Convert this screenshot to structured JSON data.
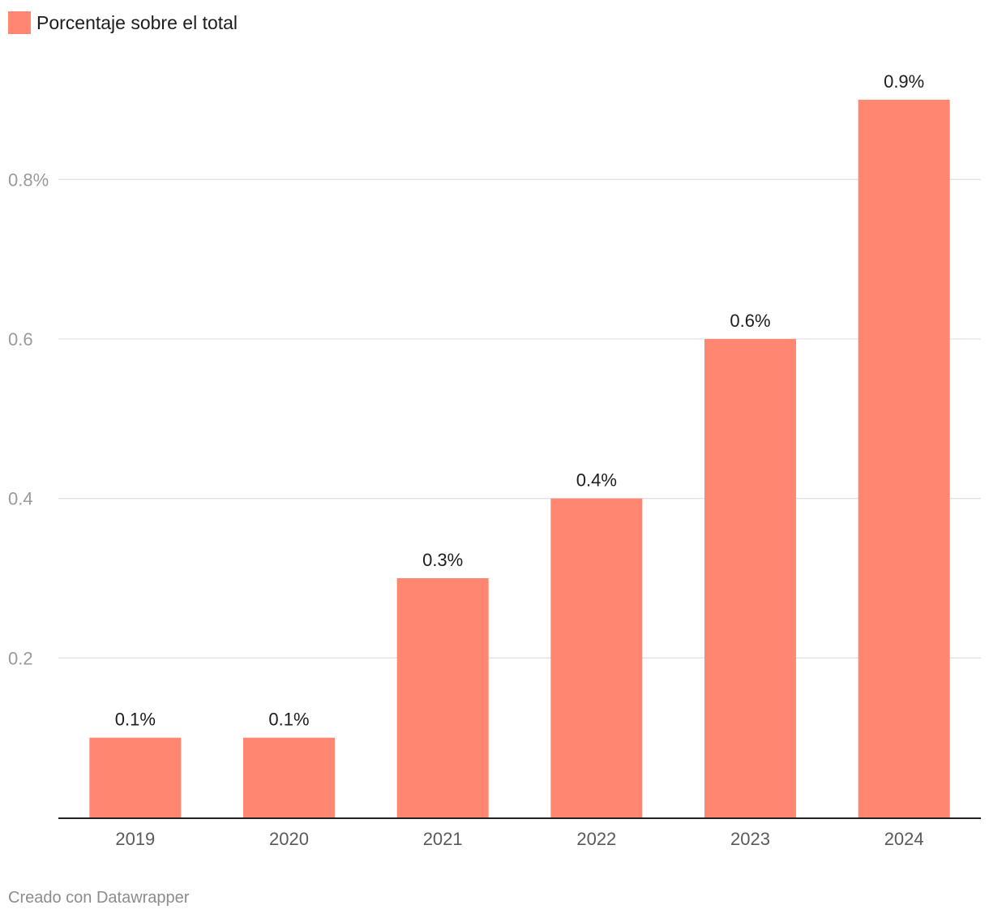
{
  "legend": {
    "label": "Porcentaje sobre el total",
    "color": "#ff8670"
  },
  "footer": {
    "credit": "Creado con Datawrapper"
  },
  "chart_data": {
    "type": "bar",
    "title": "",
    "xlabel": "",
    "ylabel": "",
    "categories": [
      "2019",
      "2020",
      "2021",
      "2022",
      "2023",
      "2024"
    ],
    "series": [
      {
        "name": "Porcentaje sobre el total",
        "values": [
          0.1,
          0.1,
          0.3,
          0.4,
          0.6,
          0.9
        ],
        "color": "#ff8670"
      }
    ],
    "data_labels": [
      "0.1%",
      "0.1%",
      "0.3%",
      "0.4%",
      "0.6%",
      "0.9%"
    ],
    "ylim": [
      0,
      0.9
    ],
    "y_ticks": [
      {
        "value": 0.2,
        "label": "0.2"
      },
      {
        "value": 0.4,
        "label": "0.4"
      },
      {
        "value": 0.6,
        "label": "0.6"
      },
      {
        "value": 0.8,
        "label": "0.8%"
      }
    ],
    "grid": true,
    "legend_position": "top-left"
  }
}
